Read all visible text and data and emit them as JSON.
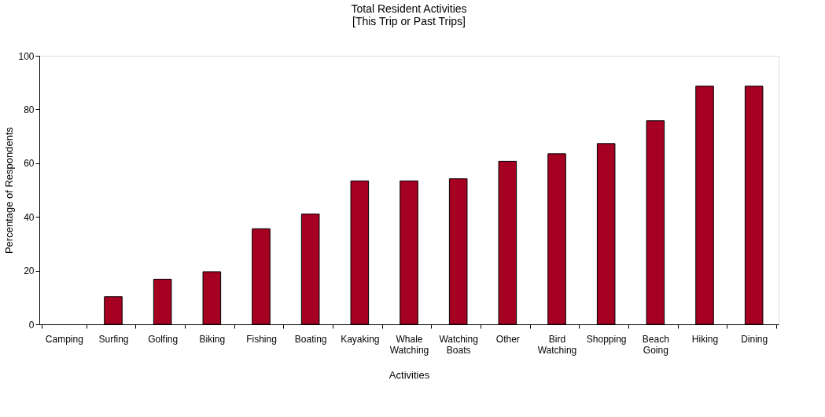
{
  "chart_data": {
    "type": "bar",
    "title": "Total Resident Activities\n[This Trip or Past Trips]",
    "xlabel": "Activities",
    "ylabel": "Percentage of Respondents",
    "categories": [
      "Camping",
      "Surfing",
      "Golfing",
      "Biking",
      "Fishing",
      "Boating",
      "Kayaking",
      "Whale Watching",
      "Watching Boats",
      "Other",
      "Bird Watching",
      "Shopping",
      "Beach Going",
      "Hiking",
      "Dining"
    ],
    "values": [
      0,
      10.3,
      16.8,
      19.6,
      35.6,
      41.1,
      53.4,
      53.4,
      54.2,
      60.7,
      63.5,
      67.3,
      75.8,
      88.7,
      88.7
    ],
    "color": "#a50021",
    "ylim": [
      0,
      100
    ],
    "yticks": [
      0,
      20,
      40,
      60,
      80,
      100
    ],
    "grid": false
  }
}
